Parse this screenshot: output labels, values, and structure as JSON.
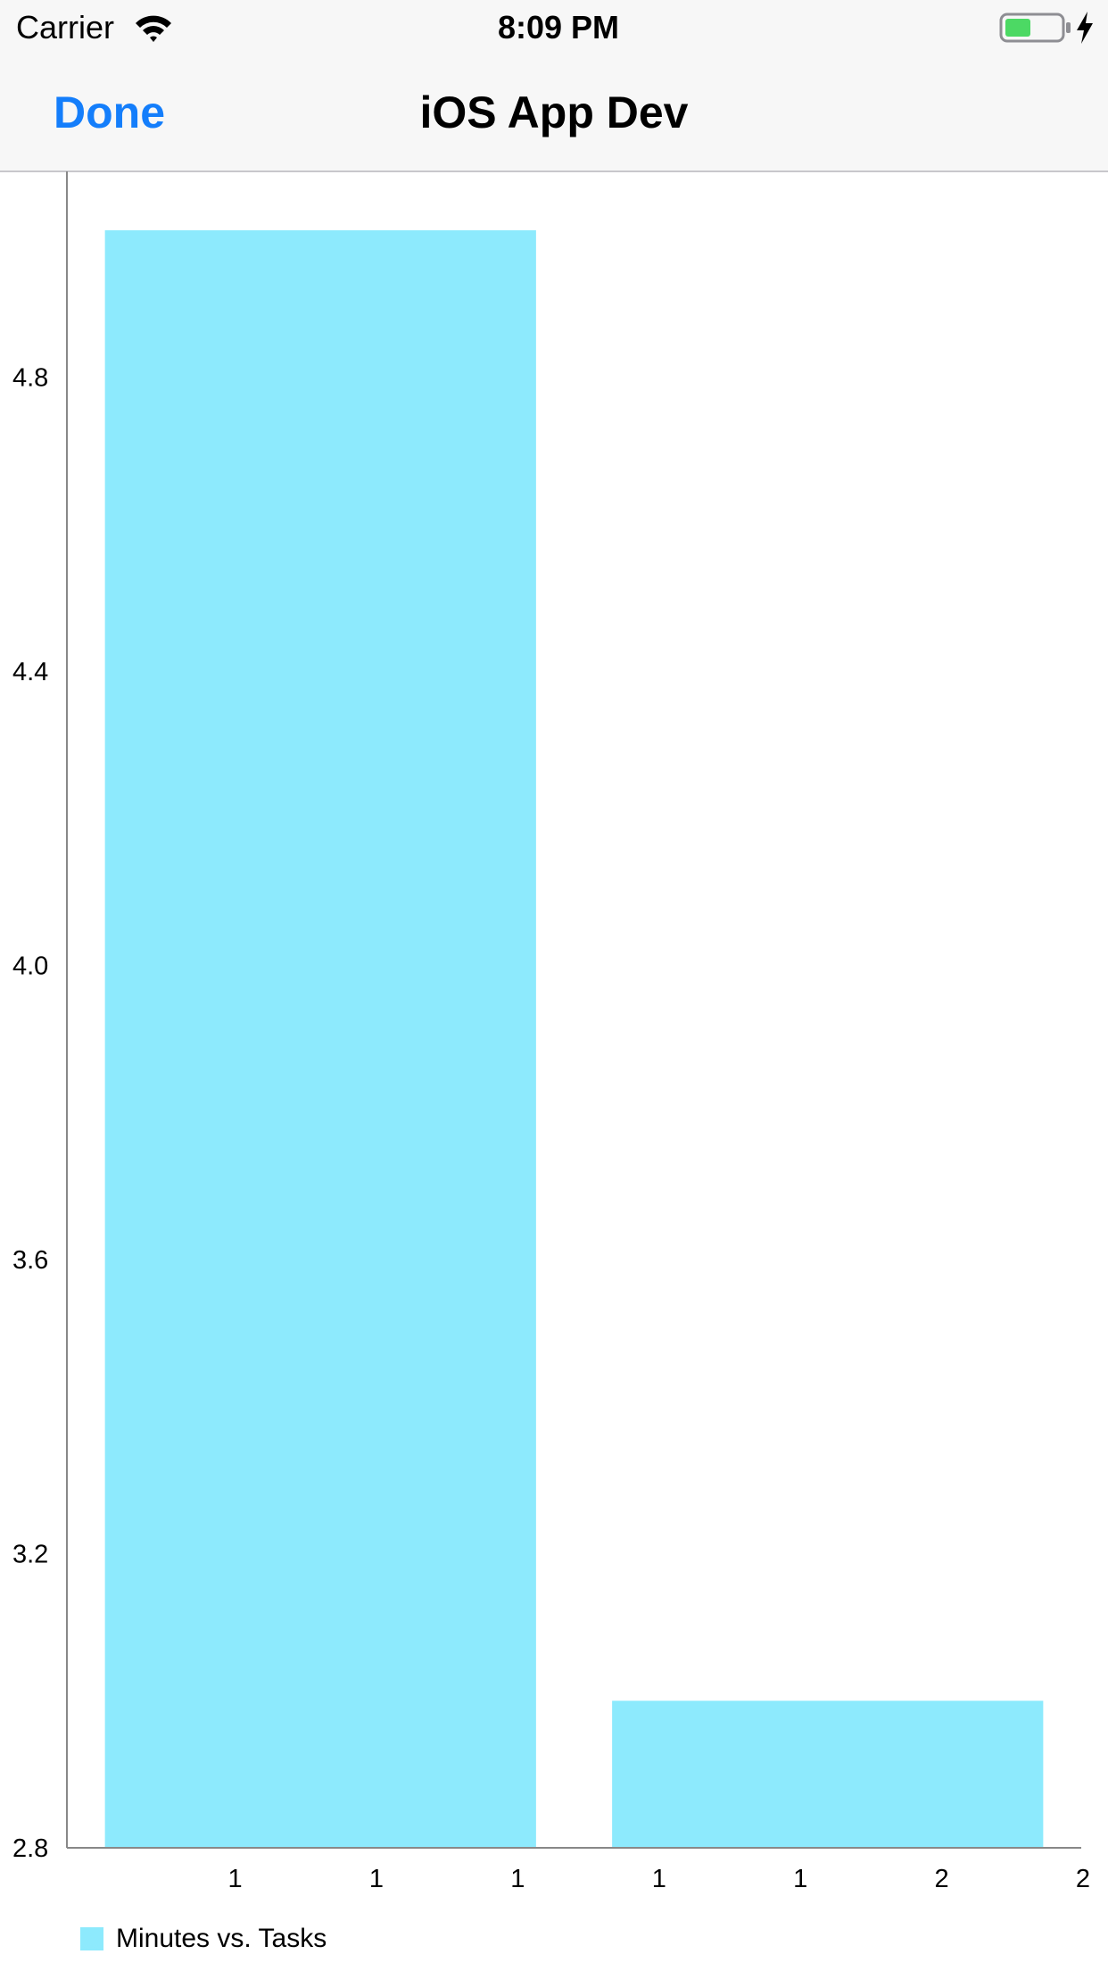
{
  "status_bar": {
    "carrier": "Carrier",
    "time": "8:09 PM",
    "wifi_icon": "wifi-icon",
    "battery_icon": "battery-icon",
    "charging_icon": "bolt-icon",
    "battery_color": "#4cd964"
  },
  "nav_bar": {
    "done_label": "Done",
    "title": "iOS App Dev",
    "accent_color": "#147efb"
  },
  "chart_data": {
    "type": "bar",
    "categories": [
      "1",
      "2"
    ],
    "values": [
      5.0,
      3.0
    ],
    "x_tick_labels": [
      "1",
      "1",
      "1",
      "1",
      "1",
      "2",
      "2"
    ],
    "y_ticks": [
      2.8,
      3.2,
      3.6,
      4.0,
      4.4,
      4.8
    ],
    "ylim": [
      2.8,
      5.08
    ],
    "title": "",
    "xlabel": "",
    "ylabel": "",
    "grid": false,
    "legend_position": "bottom-left",
    "series": [
      {
        "name": "Minutes vs. Tasks",
        "color": "#8deafd"
      }
    ]
  }
}
